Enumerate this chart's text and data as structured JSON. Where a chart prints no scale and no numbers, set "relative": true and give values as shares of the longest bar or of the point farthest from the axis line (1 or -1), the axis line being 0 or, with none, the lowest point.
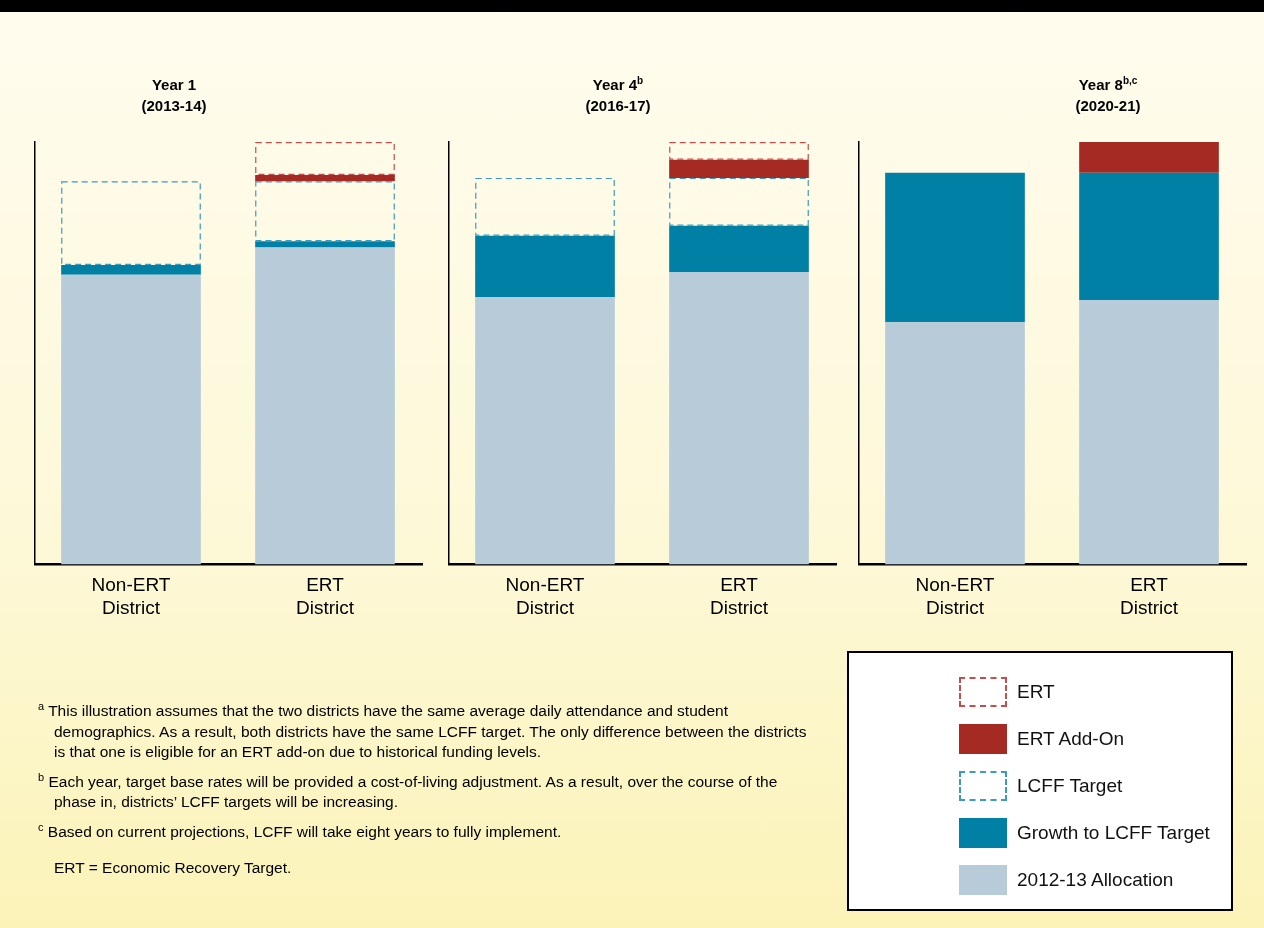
{
  "chart_data": [
    {
      "type": "bar",
      "stacked": true,
      "relative": true,
      "legend": false,
      "title": "Year 1\n(2013-14)",
      "categories": [
        "Non-ERT District",
        "ERT District"
      ],
      "series": [
        {
          "color": "#b8cbd9",
          "values": [
            0.686,
            0.75
          ]
        },
        {
          "color": "#0080a5",
          "values": [
            0.023,
            0.015
          ]
        },
        {
          "color": "#3a9cc0",
          "line_style": "dashed",
          "values": [
            0.198,
            0.142
          ]
        },
        {
          "color": "#a52a24",
          "values": [
            0,
            0.015
          ]
        },
        {
          "color": "#c0504d",
          "line_style": "dashed",
          "values": [
            0,
            0.078
          ]
        }
      ],
      "annotations": [
        "$^{a}$ This illustration assumes that the two districts have the same average daily attendance and student demographics. As a result, both districts have the same LCFF target. The only difference between the districts is that one is eligible for an ERT add-on due to historical funding levels.",
        "$^{b}$ Each year, target base rates will be provided a cost-of-living adjustment. As a result, over the course of the phase in, districts’ LCFF targets will be increasing.",
        "$^{c}$ Based on current projections, LCFF will take eight years to fully implement.",
        "ERT = Economic Recovery Target."
      ]
    },
    {
      "type": "bar",
      "stacked": true,
      "relative": true,
      "legend": false,
      "title": "Year 4$^{b}$\n(2016-17)",
      "categories": [
        "Non-ERT District",
        "ERT District"
      ],
      "series": [
        {
          "color": "#b8cbd9",
          "values": [
            0.633,
            0.692
          ]
        },
        {
          "color": "#0080a5",
          "values": [
            0.145,
            0.11
          ]
        },
        {
          "color": "#3a9cc0",
          "line_style": "dashed",
          "values": [
            0.137,
            0.113
          ]
        },
        {
          "color": "#a52a24",
          "values": [
            0,
            0.043
          ]
        },
        {
          "color": "#c0504d",
          "line_style": "dashed",
          "values": [
            0,
            0.042
          ]
        }
      ]
    },
    {
      "type": "bar",
      "stacked": true,
      "relative": true,
      "legend": "bottom right",
      "title": "Year 8$^{b,c}$\n(2020-21)",
      "categories": [
        "Non-ERT District",
        "ERT District"
      ],
      "series": [
        {
          "name": "2012-13 Allocation",
          "color": "#b8cbd9",
          "values": [
            0.573,
            0.626
          ]
        },
        {
          "name": "Growth to LCFF Target",
          "color": "#0080a5",
          "values": [
            0.354,
            0.301
          ]
        },
        {
          "name": "LCFF Target",
          "color": "#3a9cc0",
          "line_style": "dashed",
          "values": [
            0,
            0
          ]
        },
        {
          "name": "ERT Add-On",
          "color": "#a52a24",
          "values": [
            0,
            0.073
          ]
        },
        {
          "name": "ERT",
          "color": "#c0504d",
          "line_style": "dashed",
          "values": [
            0,
            0
          ]
        }
      ]
    }
  ]
}
